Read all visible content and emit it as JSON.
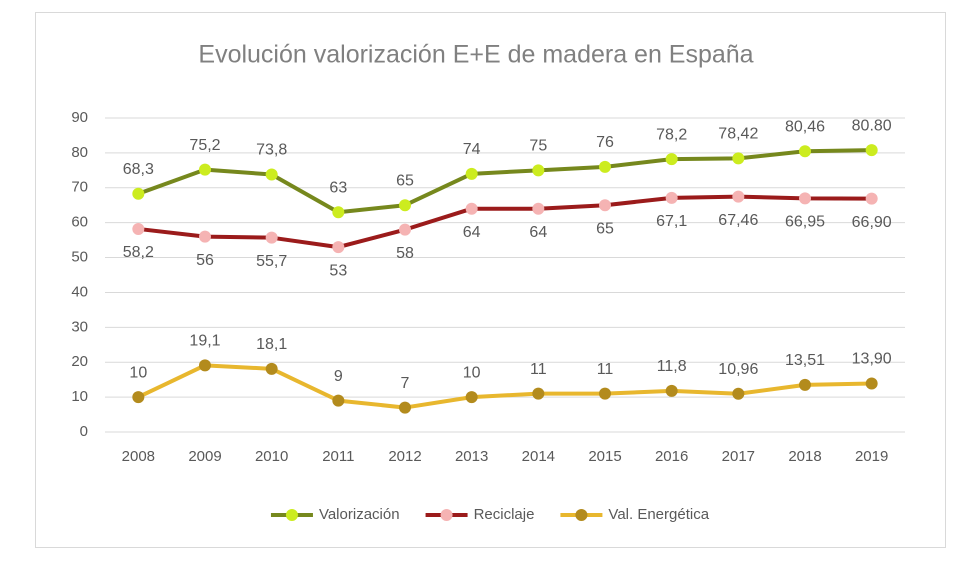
{
  "chart_data": {
    "type": "line",
    "title": "Evolución valorización E+E de madera en España",
    "categories": [
      "2008",
      "2009",
      "2010",
      "2011",
      "2012",
      "2013",
      "2014",
      "2015",
      "2016",
      "2017",
      "2018",
      "2019"
    ],
    "series": [
      {
        "name": "Valorización",
        "color": "#76881d",
        "marker_color": "#ccec1f",
        "values": [
          68.3,
          75.2,
          73.8,
          63,
          65,
          74,
          75,
          76,
          78.2,
          78.42,
          80.46,
          80.8
        ],
        "value_labels": [
          "68,3",
          "75,2",
          "73,8",
          "63",
          "65",
          "74",
          "75",
          "76",
          "78,2",
          "78,42",
          "80,46",
          "80.80"
        ]
      },
      {
        "name": "Reciclaje",
        "color": "#9b1b1b",
        "marker_color": "#f5b3b3",
        "values": [
          58.2,
          56,
          55.7,
          53,
          58,
          64,
          64,
          65,
          67.1,
          67.46,
          66.95,
          66.9
        ],
        "value_labels": [
          "58,2",
          "56",
          "55,7",
          "53",
          "58",
          "64",
          "64",
          "65",
          "67,1",
          "67,46",
          "66,95",
          "66,90"
        ]
      },
      {
        "name": "Val. Energética",
        "color": "#e8b72e",
        "marker_color": "#b38b1d",
        "values": [
          10,
          19.1,
          18.1,
          9,
          7,
          10,
          11,
          11,
          11.8,
          10.96,
          13.51,
          13.9
        ],
        "value_labels": [
          "10",
          "19,1",
          "18,1",
          "9",
          "7",
          "10",
          "11",
          "11",
          "11,8",
          "10,96",
          "13,51",
          "13,90"
        ]
      }
    ],
    "ylim": [
      0,
      90
    ],
    "yticks": [
      0,
      10,
      20,
      30,
      40,
      50,
      60,
      70,
      80,
      90
    ],
    "grid": true,
    "legend": "bottom"
  }
}
